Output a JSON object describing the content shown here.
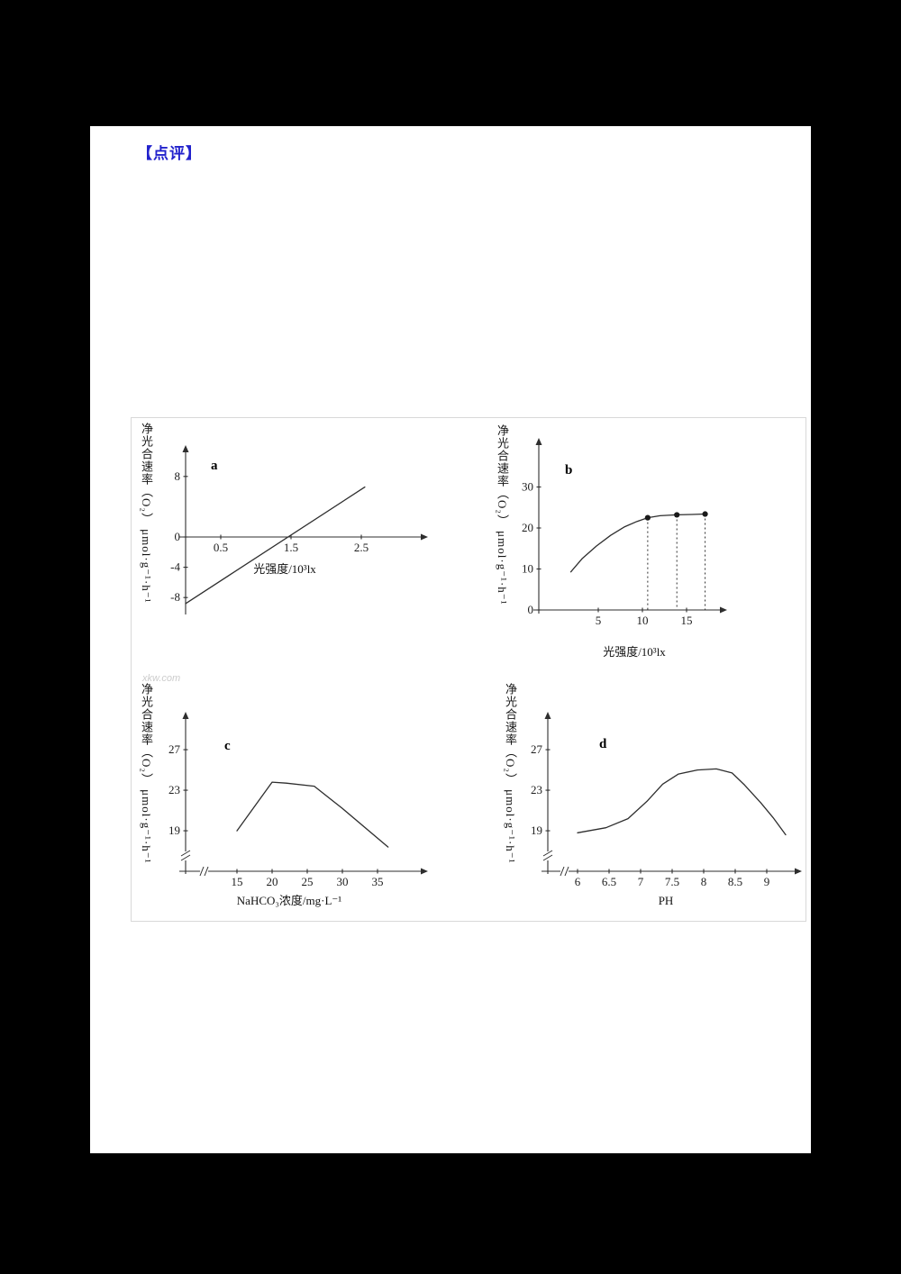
{
  "page": {
    "background": "#000000",
    "paper_color": "#ffffff"
  },
  "header": {
    "review_label": "【点评】",
    "review_color": "#2222cc"
  },
  "watermark": "xkw.com",
  "chart_data": [
    {
      "id": "a",
      "type": "line",
      "label": "a",
      "y_axis_label": "净光合速率（O₂） μmol·g⁻¹·h⁻¹",
      "x_axis_label": "光强度/10³lx",
      "x_ticks": {
        "values": [
          0.5,
          1.5,
          2.5
        ],
        "labels": [
          "0.5",
          "1.5",
          "2.5"
        ]
      },
      "y_ticks": {
        "values": [
          8,
          0,
          -4,
          -8
        ],
        "labels": [
          "8",
          "0",
          "-4",
          "-8"
        ]
      },
      "points": [
        [
          0,
          -8.8
        ],
        [
          2.55,
          6.6
        ]
      ],
      "x_range": [
        0,
        3.3
      ],
      "y_range": [
        -10,
        11
      ],
      "grid": false,
      "legend": "none"
    },
    {
      "id": "b",
      "type": "line",
      "label": "b",
      "y_axis_label": "净光合速率（O₂） μmol·g⁻¹·h⁻¹",
      "x_axis_label": "光强度/10³lx",
      "x_ticks": {
        "values": [
          5,
          10,
          15
        ],
        "labels": [
          "5",
          "10",
          "15"
        ]
      },
      "y_ticks": {
        "values": [
          30,
          20,
          10,
          0
        ],
        "labels": [
          "30",
          "20",
          "10",
          "0"
        ]
      },
      "points": [
        [
          1.9,
          9.3
        ],
        [
          3.2,
          12.6
        ],
        [
          4.8,
          15.6
        ],
        [
          6.4,
          18.2
        ],
        [
          8,
          20.3
        ],
        [
          9.4,
          21.6
        ],
        [
          10.6,
          22.5
        ],
        [
          12,
          23.0
        ],
        [
          13.9,
          23.2
        ],
        [
          15.6,
          23.3
        ],
        [
          17.1,
          23.4
        ]
      ],
      "markers": [
        [
          10.6,
          22.5
        ],
        [
          13.9,
          23.2
        ],
        [
          17.1,
          23.4
        ]
      ],
      "marker_style": "filled-circle-with-dashed-drop-lines",
      "x_range": [
        0,
        19
      ],
      "y_range": [
        0,
        38
      ],
      "grid": false,
      "legend": "none"
    },
    {
      "id": "c",
      "type": "line",
      "label": "c",
      "y_axis_label": "净光合速率（O₂） μmol·g⁻¹·h⁻¹",
      "x_axis_label": "NaHCO₃浓度/mg·L⁻¹",
      "x_ticks": {
        "values": [
          15,
          20,
          25,
          30,
          35
        ],
        "labels": [
          "15",
          "20",
          "25",
          "30",
          "35"
        ]
      },
      "y_ticks": {
        "values": [
          27,
          23,
          19
        ],
        "labels": [
          "27",
          "23",
          "19"
        ]
      },
      "points": [
        [
          15,
          19
        ],
        [
          20,
          23.8
        ],
        [
          22,
          23.7
        ],
        [
          26,
          23.4
        ],
        [
          30,
          21.2
        ],
        [
          36.5,
          17.4
        ]
      ],
      "axis_break": true,
      "x_range": [
        12,
        40
      ],
      "y_range": [
        15,
        29
      ],
      "grid": false,
      "legend": "none"
    },
    {
      "id": "d",
      "type": "line",
      "label": "d",
      "y_axis_label": "净光合速率（O₂） μmol·g⁻¹·h⁻¹",
      "x_axis_label": "PH",
      "x_ticks": {
        "values": [
          6,
          6.5,
          7,
          7.5,
          8,
          8.5,
          9
        ],
        "labels": [
          "6",
          "6.5",
          "7",
          "7.5",
          "8",
          "8.5",
          "9"
        ]
      },
      "y_ticks": {
        "values": [
          27,
          23,
          19
        ],
        "labels": [
          "27",
          "23",
          "19"
        ]
      },
      "points": [
        [
          6,
          18.8
        ],
        [
          6.45,
          19.3
        ],
        [
          6.8,
          20.2
        ],
        [
          7.1,
          21.9
        ],
        [
          7.35,
          23.6
        ],
        [
          7.6,
          24.6
        ],
        [
          7.9,
          25.0
        ],
        [
          8.2,
          25.1
        ],
        [
          8.45,
          24.7
        ],
        [
          8.65,
          23.5
        ],
        [
          8.9,
          21.8
        ],
        [
          9.1,
          20.3
        ],
        [
          9.3,
          18.6
        ]
      ],
      "axis_break": true,
      "x_range": [
        5.7,
        9.8
      ],
      "y_range": [
        15,
        29
      ],
      "grid": false,
      "legend": "none"
    }
  ]
}
